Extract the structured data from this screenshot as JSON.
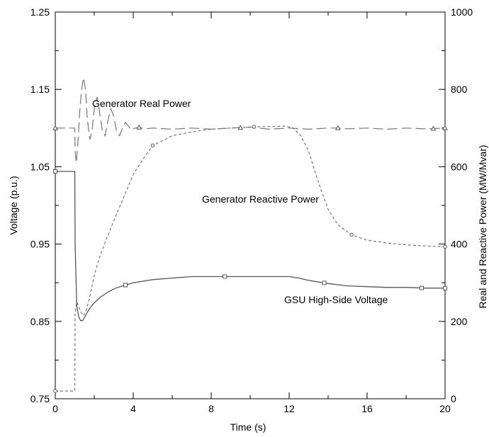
{
  "chart_data": {
    "type": "line",
    "title": "",
    "xlabel": "Time (s)",
    "ylabel_left": "Voltage (p.u.)",
    "ylabel_right": "Real and Reactive Power (MW/Mvar)",
    "xlim": [
      0,
      20
    ],
    "ylim_left": [
      0.75,
      1.25
    ],
    "ylim_right": [
      0,
      1000
    ],
    "x_ticks": [
      0,
      4,
      8,
      12,
      16,
      20
    ],
    "x_tick_labels": [
      "0",
      "4",
      "8",
      "12",
      "16",
      "20"
    ],
    "y_left_ticks": [
      0.75,
      0.85,
      0.95,
      1.05,
      1.15,
      1.25
    ],
    "y_left_tick_labels": [
      "0.75",
      "0.85",
      "0.95",
      "1.05",
      "1.15",
      "1.25"
    ],
    "y_right_ticks": [
      0,
      200,
      400,
      600,
      800,
      1000
    ],
    "y_right_tick_labels": [
      "0",
      "200",
      "400",
      "600",
      "800",
      "1000"
    ],
    "grid": false,
    "legend": "none",
    "series": [
      {
        "name": "Generator Real Power",
        "axis": "right",
        "style": "long-dash",
        "color": "#777777",
        "marker": "triangle",
        "x": [
          0,
          1.0,
          1.02,
          1.08,
          1.16,
          1.25,
          1.35,
          1.45,
          1.55,
          1.65,
          1.78,
          1.9,
          2.02,
          2.15,
          2.28,
          2.42,
          2.56,
          2.7,
          2.85,
          3.0,
          3.15,
          3.3,
          3.45,
          3.6,
          3.75,
          3.9,
          4.1,
          4.3,
          4.6,
          5.0,
          6.0,
          7.0,
          8.0,
          9.0,
          10.0,
          11.0,
          12.0,
          13.0,
          14.0,
          14.5,
          15.0,
          16.0,
          17.0,
          18.0,
          19.0,
          20.0
        ],
        "y": [
          700,
          700,
          640,
          610,
          660,
          740,
          800,
          830,
          800,
          720,
          670,
          700,
          760,
          780,
          740,
          690,
          680,
          720,
          750,
          730,
          690,
          680,
          700,
          715,
          705,
          695,
          700,
          702,
          698,
          700,
          697,
          700,
          697,
          700,
          702,
          697,
          700,
          697,
          700,
          700,
          698,
          700,
          697,
          700,
          698,
          700
        ],
        "marker_x": [
          0,
          4.3,
          9.5,
          14.5,
          19.4,
          20.0
        ]
      },
      {
        "name": "Generator Reactive Power",
        "axis": "right",
        "style": "short-dash",
        "color": "#777777",
        "marker": "circle",
        "x": [
          0,
          1.0,
          1.02,
          1.1,
          1.2,
          1.3,
          1.45,
          1.6,
          1.8,
          2.0,
          2.3,
          2.6,
          3.0,
          3.5,
          4.0,
          4.5,
          5.0,
          6.0,
          7.0,
          8.0,
          9.0,
          10.0,
          11.0,
          11.8,
          12.2,
          12.6,
          13.0,
          13.5,
          14.0,
          14.5,
          15.2,
          16.0,
          17.0,
          18.0,
          19.0,
          20.0
        ],
        "y": [
          20,
          20,
          220,
          250,
          240,
          225,
          215,
          230,
          270,
          320,
          370,
          410,
          460,
          520,
          580,
          620,
          655,
          680,
          690,
          697,
          700,
          703,
          704,
          705,
          700,
          680,
          640,
          560,
          490,
          450,
          424,
          410,
          403,
          398,
          395,
          393
        ],
        "marker_x": [
          0,
          5.0,
          10.2,
          15.2,
          20.0
        ]
      },
      {
        "name": "GSU High-Side Voltage",
        "axis": "left",
        "style": "solid",
        "color": "#555555",
        "marker": "square",
        "x": [
          0,
          1.0,
          1.02,
          1.1,
          1.2,
          1.3,
          1.4,
          1.5,
          1.65,
          1.8,
          2.0,
          2.3,
          2.7,
          3.1,
          3.6,
          4.0,
          5.0,
          6.0,
          7.0,
          8.0,
          9.0,
          10.0,
          11.0,
          12.0,
          12.5,
          13.0,
          14.0,
          15.0,
          16.0,
          17.0,
          18.0,
          19.0,
          20.0
        ],
        "y": [
          1.044,
          1.044,
          0.95,
          0.87,
          0.856,
          0.851,
          0.851,
          0.855,
          0.862,
          0.868,
          0.874,
          0.881,
          0.888,
          0.893,
          0.897,
          0.9,
          0.904,
          0.906,
          0.908,
          0.908,
          0.908,
          0.908,
          0.908,
          0.908,
          0.906,
          0.903,
          0.899,
          0.896,
          0.895,
          0.894,
          0.894,
          0.893,
          0.893
        ],
        "marker_x": [
          0,
          3.6,
          8.7,
          13.8,
          18.8,
          20.0
        ]
      }
    ],
    "annotations": [
      {
        "text": "Generator Real Power",
        "series": 0
      },
      {
        "text": "Generator Reactive Power",
        "series": 1
      },
      {
        "text": "GSU High-Side Voltage",
        "series": 2
      }
    ]
  }
}
